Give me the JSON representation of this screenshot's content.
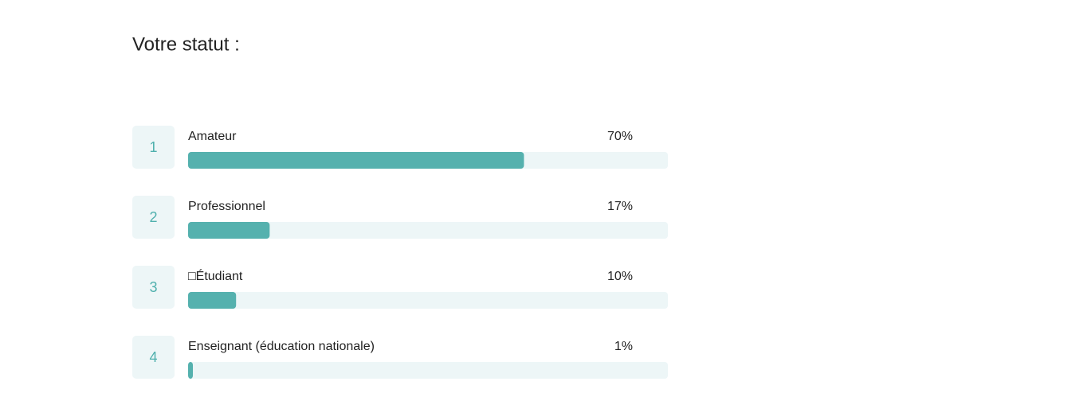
{
  "chart_data": {
    "type": "bar",
    "orientation": "horizontal",
    "title": "Votre statut :",
    "ranks": [
      1,
      2,
      3,
      4
    ],
    "categories": [
      "Amateur",
      "Professionnel",
      "□Étudiant",
      "Enseignant (éducation nationale)"
    ],
    "values": [
      70,
      17,
      10,
      1
    ],
    "value_labels": [
      "70%",
      "17%",
      "10%",
      "1%"
    ],
    "xlim": [
      0,
      100
    ],
    "color": "#55b1ae"
  }
}
